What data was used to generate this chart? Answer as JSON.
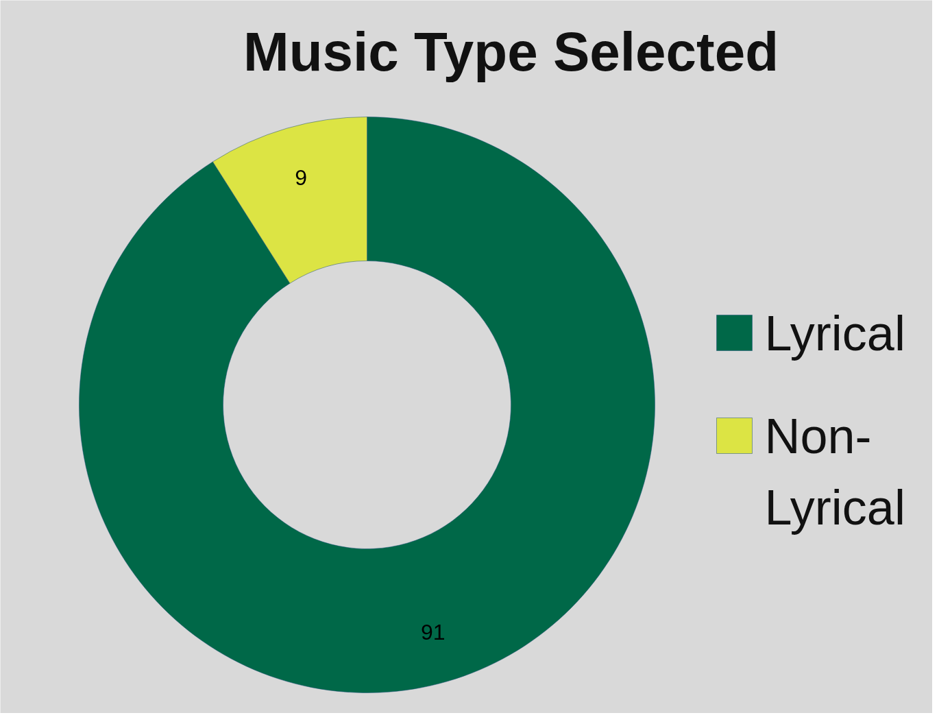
{
  "chart_data": {
    "type": "donut",
    "title": "Music Type Selected",
    "categories": [
      "Lyrical",
      "Non-Lyrical"
    ],
    "values": [
      91,
      9
    ],
    "colors": [
      "#006848",
      "#dce444"
    ],
    "data_labels": true,
    "legend": "right"
  }
}
